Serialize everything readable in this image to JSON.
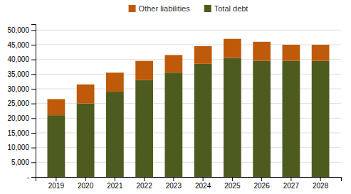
{
  "chart_data": {
    "type": "bar",
    "stacked": true,
    "categories": [
      "2019",
      "2020",
      "2021",
      "2022",
      "2023",
      "2024",
      "2025",
      "2026",
      "2027",
      "2028"
    ],
    "series": [
      {
        "name": "Total debt",
        "color": "#4e5b1f",
        "values": [
          21000,
          25000,
          29000,
          33000,
          35500,
          38500,
          40500,
          39500,
          39500,
          39500
        ]
      },
      {
        "name": "Other liabilities",
        "color": "#bf5a0a",
        "values": [
          5500,
          6500,
          6500,
          6500,
          6000,
          6000,
          6500,
          6500,
          5500,
          5500
        ]
      }
    ],
    "ylim": [
      0,
      52000
    ],
    "yticks": [
      {
        "value": 0,
        "label": "-"
      },
      {
        "value": 5000,
        "label": "5,000"
      },
      {
        "value": 10000,
        "label": "10,000"
      },
      {
        "value": 15000,
        "label": "15,000"
      },
      {
        "value": 20000,
        "label": "20,000"
      },
      {
        "value": 25000,
        "label": "25,000"
      },
      {
        "value": 30000,
        "label": "30,000"
      },
      {
        "value": 35000,
        "label": "35,000"
      },
      {
        "value": 40000,
        "label": "40,000"
      },
      {
        "value": 45000,
        "label": "45,000"
      },
      {
        "value": 50000,
        "label": "50,000"
      }
    ],
    "grid": true,
    "legend": "top"
  }
}
